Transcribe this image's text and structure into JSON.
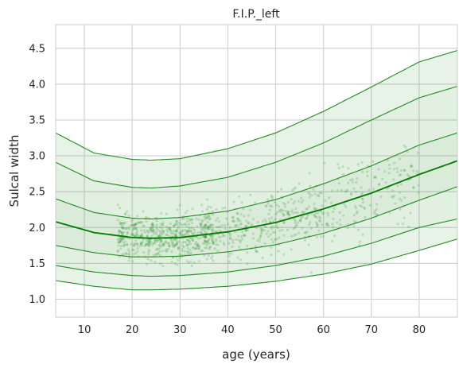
{
  "chart_data": {
    "type": "area",
    "title": "F.I.P._left",
    "xlabel": "age (years)",
    "ylabel": "Sulcal width",
    "xlim": [
      4,
      88
    ],
    "ylim": [
      0.75,
      4.83
    ],
    "xticks": [
      10,
      20,
      30,
      40,
      50,
      60,
      70,
      80
    ],
    "yticks": [
      1.0,
      1.5,
      2.0,
      2.5,
      3.0,
      3.5,
      4.0,
      4.5
    ],
    "grid": true,
    "color": "#228B22",
    "median_color": "#007A00",
    "x": [
      4,
      12,
      20,
      24,
      30,
      40,
      50,
      60,
      70,
      80,
      88
    ],
    "series": [
      {
        "values": [
          1.26,
          1.18,
          1.13,
          1.13,
          1.14,
          1.18,
          1.25,
          1.35,
          1.49,
          1.68,
          1.84
        ]
      },
      {
        "values": [
          1.47,
          1.38,
          1.33,
          1.32,
          1.33,
          1.38,
          1.47,
          1.6,
          1.78,
          2.0,
          2.12
        ]
      },
      {
        "values": [
          1.75,
          1.65,
          1.59,
          1.59,
          1.6,
          1.66,
          1.76,
          1.92,
          2.13,
          2.38,
          2.57
        ]
      },
      {
        "values": [
          2.08,
          1.93,
          1.86,
          1.85,
          1.86,
          1.94,
          2.07,
          2.26,
          2.48,
          2.74,
          2.93
        ]
      },
      {
        "values": [
          2.4,
          2.21,
          2.13,
          2.12,
          2.14,
          2.23,
          2.39,
          2.61,
          2.86,
          3.15,
          3.32
        ]
      },
      {
        "values": [
          2.91,
          2.65,
          2.56,
          2.55,
          2.58,
          2.7,
          2.91,
          3.18,
          3.5,
          3.81,
          3.97
        ]
      },
      {
        "values": [
          3.32,
          3.04,
          2.95,
          2.94,
          2.96,
          3.1,
          3.32,
          3.62,
          3.96,
          4.31,
          4.47
        ]
      }
    ]
  }
}
